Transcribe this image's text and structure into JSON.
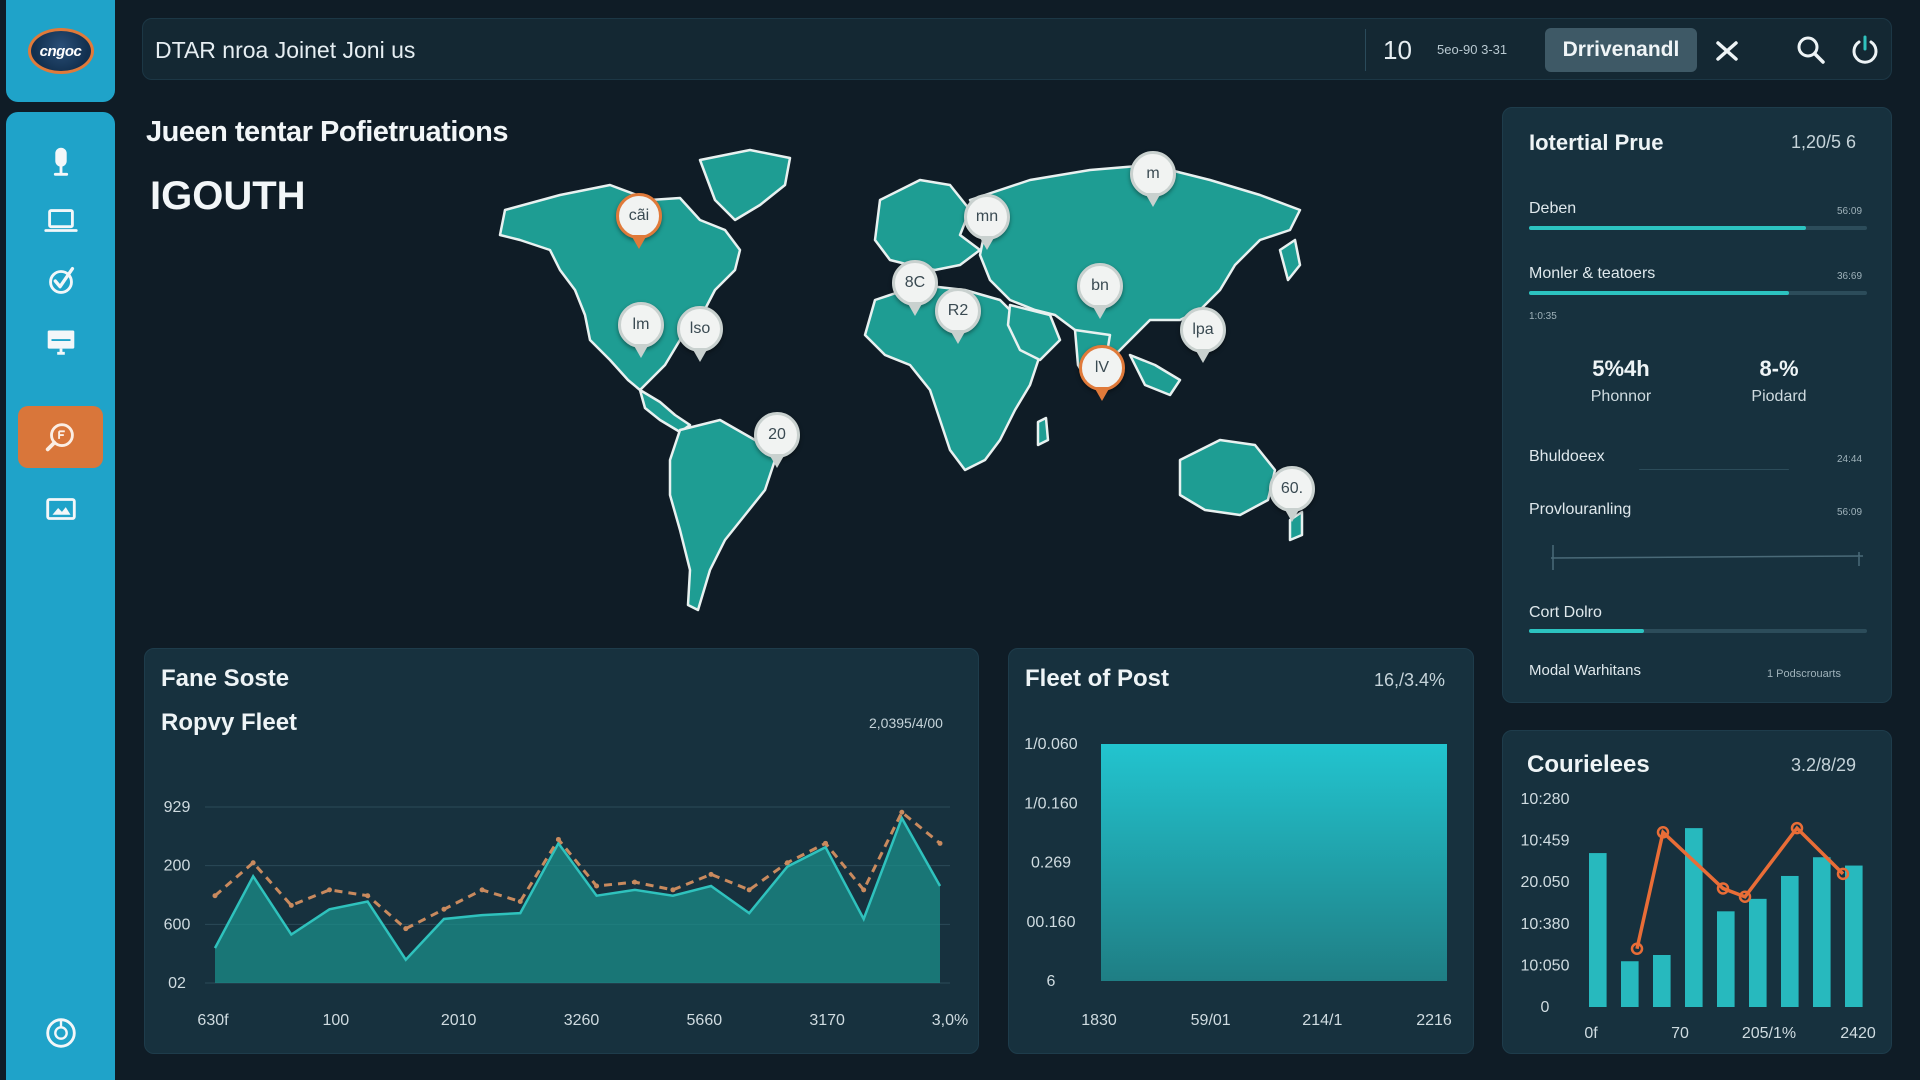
{
  "app": {
    "logo_text": "cngoc",
    "search_title": "DTAR nroa Joinet Joni us",
    "count": "10",
    "date": "5eo-90 3-31",
    "dropdown_value": "Drrivenandl"
  },
  "sidebar": {
    "items": [
      {
        "icon": "microphone-icon"
      },
      {
        "icon": "laptop-icon"
      },
      {
        "icon": "check-badge-icon"
      },
      {
        "icon": "monitor-icon"
      },
      {
        "icon": "search-badge-icon",
        "active": true
      },
      {
        "icon": "image-icon"
      },
      {
        "icon": "globe-icon"
      }
    ]
  },
  "map": {
    "heading": "Jueen tentar Pofietruations",
    "subheading": "IGOUTH",
    "pins": [
      {
        "label": "cãi",
        "style": "orange"
      },
      {
        "label": "mn",
        "style": "white"
      },
      {
        "label": "m",
        "style": "white"
      },
      {
        "label": "8C",
        "style": "white"
      },
      {
        "label": "R2",
        "style": "white"
      },
      {
        "label": "bn",
        "style": "white"
      },
      {
        "label": "lm",
        "style": "white"
      },
      {
        "label": "lso",
        "style": "white"
      },
      {
        "label": "lpa",
        "style": "white"
      },
      {
        "label": "lV",
        "style": "orange"
      },
      {
        "label": "20",
        "style": "white"
      },
      {
        "label": "60.",
        "style": "white"
      }
    ]
  },
  "right_panel": {
    "title": "Iotertial Prue",
    "value": "1,20/5 6",
    "bars": [
      {
        "label": "Deben",
        "value": "56:09",
        "fill": 0.82
      },
      {
        "label": "Monler & teatoers",
        "value": "36:69",
        "fill": 0.77
      }
    ],
    "bars_note": "1:0:35",
    "metrics": [
      {
        "value": "5%4h",
        "label": "Phonnor"
      },
      {
        "value": "8-%",
        "label": "Piodard"
      }
    ],
    "rows": [
      {
        "label": "Bhuldoeex",
        "value": "24:44"
      },
      {
        "label": "Provlouranling",
        "value": "56:09"
      },
      {
        "label": "Cort Dolro",
        "value": ""
      },
      {
        "label": "Modal Warhitans",
        "value": "1 Podscrouarts"
      }
    ],
    "cort_fill": 0.34
  },
  "chart_data": [
    {
      "type": "area",
      "title": "Fane Soste",
      "subtitle": "Ropvy Fleet",
      "value": "2,0395/4/00",
      "x_labels": [
        "630f",
        "100",
        "2010",
        "3260",
        "5660",
        "3170",
        "3,0%"
      ],
      "y_labels": [
        "929",
        "200",
        "600",
        "02"
      ],
      "series": [
        {
          "values": [
            0.18,
            0.55,
            0.25,
            0.38,
            0.42,
            0.12,
            0.33,
            0.35,
            0.36,
            0.72,
            0.45,
            0.48,
            0.45,
            0.5,
            0.36,
            0.6,
            0.7,
            0.33,
            0.85,
            0.5
          ]
        },
        {
          "values": [
            0.45,
            0.62,
            0.4,
            0.48,
            0.45,
            0.28,
            0.38,
            0.48,
            0.42,
            0.74,
            0.5,
            0.52,
            0.48,
            0.56,
            0.48,
            0.62,
            0.72,
            0.48,
            0.88,
            0.72
          ]
        }
      ],
      "colors": {
        "area": "#1b8e8a",
        "line": "#2fc2bd",
        "dashed": "#c98a5e"
      }
    },
    {
      "type": "bar",
      "title": "Fleet of Post",
      "value": "16,/3.4%",
      "x_labels": [
        "1830",
        "59/01",
        "214/1",
        "2216"
      ],
      "y_labels": [
        "1/0.060",
        "1/0.160",
        "0.269",
        "00.160",
        "6"
      ],
      "values": [
        1.0
      ],
      "colors": {
        "top": "#22c4cf",
        "bottom": "#1f7e84"
      }
    },
    {
      "type": "bar",
      "title": "Courielees",
      "value": "3.2/8/29",
      "x_labels": [
        "0f",
        "70",
        "205/1%",
        "2420"
      ],
      "y_labels": [
        "10:280",
        "10:459",
        "20.050",
        "10:380",
        "10:050",
        "0"
      ],
      "values": [
        0.74,
        0.22,
        0.25,
        0.86,
        0.46,
        0.52,
        0.63,
        0.72,
        0.68
      ],
      "line": [
        0.28,
        0.84,
        0.57,
        0.53,
        0.86,
        0.64
      ],
      "colors": {
        "bar": "#27b9be",
        "line": "#e96d37"
      }
    }
  ]
}
